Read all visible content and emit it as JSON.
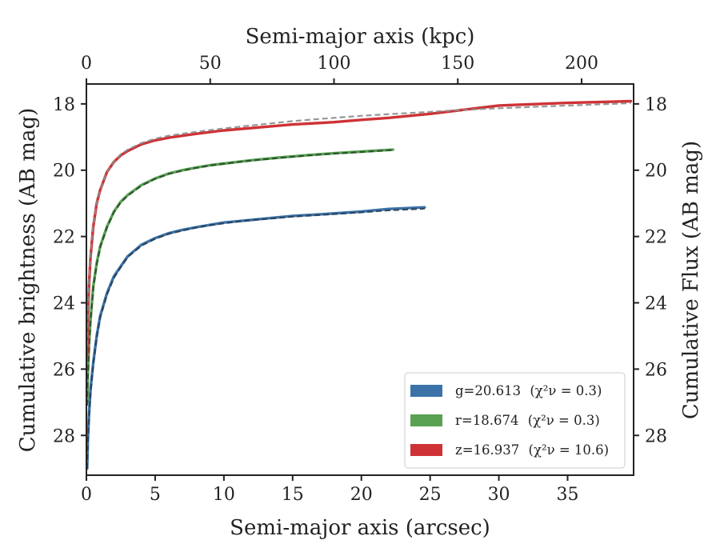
{
  "chart_data": {
    "type": "line",
    "title": "",
    "xlabel": "Semi-major axis (arcsec)",
    "x2label": "Semi-major axis (kpc)",
    "ylabel": "Cumulative brightness (AB mag)",
    "y2label": "Cumulative Flux (AB mag)",
    "xlim": [
      0,
      39.8
    ],
    "x2lim": [
      0,
      221
    ],
    "ylim": [
      29.2,
      17.4
    ],
    "y_inverted": true,
    "xticks": [
      0,
      5,
      10,
      15,
      20,
      25,
      30,
      35
    ],
    "x2ticks": [
      0,
      50,
      100,
      150,
      200
    ],
    "yticks": [
      18,
      20,
      22,
      24,
      26,
      28
    ],
    "grid": false,
    "legend_position": "lower-right",
    "series": [
      {
        "name": "g=20.613",
        "chi_label": "(χ²ν = 0.3)",
        "color": "#3b73a8",
        "fit_color": "#2a3f55",
        "x": [
          0.05,
          0.1,
          0.2,
          0.3,
          0.5,
          0.75,
          1.0,
          1.5,
          2.0,
          2.5,
          3.0,
          4.0,
          5.0,
          6.0,
          7.0,
          8.0,
          9.0,
          10.0,
          12.0,
          14.0,
          15.0,
          17.0,
          20.0,
          22.0,
          24.6
        ],
        "values": [
          29.0,
          28.2,
          27.3,
          26.6,
          25.8,
          25.0,
          24.4,
          23.7,
          23.2,
          22.9,
          22.6,
          22.25,
          22.05,
          21.9,
          21.8,
          21.72,
          21.65,
          21.58,
          21.5,
          21.42,
          21.38,
          21.33,
          21.25,
          21.17,
          21.12
        ],
        "fit": [
          29.0,
          28.3,
          27.4,
          26.7,
          25.85,
          25.05,
          24.45,
          23.75,
          23.25,
          22.92,
          22.62,
          22.28,
          22.07,
          21.92,
          21.82,
          21.73,
          21.66,
          21.6,
          21.5,
          21.44,
          21.4,
          21.35,
          21.27,
          21.21,
          21.16
        ]
      },
      {
        "name": "r=18.674",
        "chi_label": "(χ²ν = 0.3)",
        "color": "#58a252",
        "fit_color": "#2c4a2c",
        "x": [
          0.05,
          0.1,
          0.2,
          0.3,
          0.5,
          0.75,
          1.0,
          1.5,
          2.0,
          2.5,
          3.0,
          4.0,
          5.0,
          6.0,
          7.0,
          8.0,
          9.0,
          10.0,
          12.0,
          14.0,
          16.0,
          18.0,
          20.0,
          22.3
        ],
        "values": [
          27.0,
          26.2,
          25.2,
          24.5,
          23.5,
          22.8,
          22.3,
          21.7,
          21.25,
          20.95,
          20.75,
          20.45,
          20.25,
          20.1,
          20.0,
          19.92,
          19.85,
          19.8,
          19.7,
          19.62,
          19.55,
          19.49,
          19.44,
          19.38
        ],
        "fit": [
          27.1,
          26.3,
          25.3,
          24.55,
          23.55,
          22.85,
          22.33,
          21.72,
          21.27,
          20.97,
          20.77,
          20.47,
          20.26,
          20.11,
          20.01,
          19.93,
          19.86,
          19.8,
          19.71,
          19.63,
          19.56,
          19.5,
          19.45,
          19.39
        ]
      },
      {
        "name": "z=16.937",
        "chi_label": "(χ²ν = 10.6)",
        "color": "#cf3236",
        "fit_color": "#8c8c8c",
        "x": [
          0.05,
          0.1,
          0.2,
          0.3,
          0.5,
          0.75,
          1.0,
          1.5,
          2.0,
          2.5,
          3.0,
          4.0,
          5.0,
          6.0,
          8.0,
          10.0,
          12.0,
          15.0,
          18.0,
          20.0,
          22.0,
          25.0,
          28.0,
          30.0,
          35.0,
          39.6
        ],
        "values": [
          25.6,
          24.5,
          23.4,
          22.6,
          21.7,
          21.0,
          20.6,
          20.05,
          19.75,
          19.55,
          19.42,
          19.22,
          19.1,
          19.02,
          18.9,
          18.8,
          18.73,
          18.62,
          18.55,
          18.48,
          18.42,
          18.3,
          18.15,
          18.05,
          17.97,
          17.92
        ],
        "fit": [
          25.3,
          24.3,
          23.3,
          22.5,
          21.65,
          21.0,
          20.6,
          20.05,
          19.75,
          19.52,
          19.38,
          19.18,
          19.05,
          18.96,
          18.84,
          18.74,
          18.65,
          18.52,
          18.42,
          18.36,
          18.31,
          18.24,
          18.17,
          18.13,
          18.05,
          17.98
        ]
      }
    ]
  }
}
